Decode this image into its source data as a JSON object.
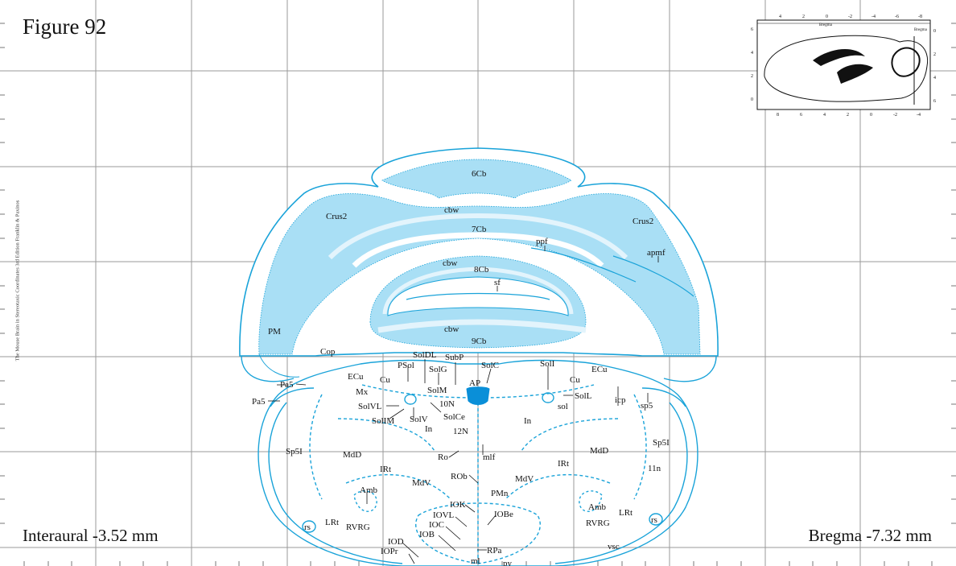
{
  "figure": {
    "title": "Figure 92",
    "side_credit": "The Mouse Brain in Stereotaxic Coordinates 3rd Edition  Franklin & Paxinos",
    "interaural": "Interaural -3.52 mm",
    "bregma": "Bregma -7.32 mm"
  },
  "colors": {
    "outline": "#1aa3d9",
    "fill_light": "#a9dff5",
    "fill_white_matter": "#e3f4fc",
    "area_postrema": "#0a8fd8",
    "grid": "#9a9a9a"
  },
  "inset": {
    "top_ticks": [
      "4",
      "2",
      "0",
      "-2",
      "-4",
      "-6",
      "-8"
    ],
    "bottom_ticks": [
      "8",
      "6",
      "4",
      "2",
      "0",
      "-2",
      "-4"
    ],
    "left_ticks": [
      "6",
      "4",
      "2",
      "0"
    ],
    "right_ticks": [
      "0",
      "2",
      "4",
      "6"
    ],
    "label_left": "Bregma",
    "label_right": "Bregma"
  },
  "labels": {
    "c6Cb": "6Cb",
    "crus2_l": "Crus2",
    "crus2_r": "Crus2",
    "cbw1": "cbw",
    "c7Cb": "7Cb",
    "ppf": "ppf",
    "apmf": "apmf",
    "cbw2": "cbw",
    "c8Cb": "8Cb",
    "sf": "sf",
    "pm": "PM",
    "cbw3": "cbw",
    "c9Cb": "9Cb",
    "cop": "Cop",
    "soldl": "SolDL",
    "subp": "SubP",
    "psol": "PSol",
    "solg": "SolG",
    "solc": "SolC",
    "soli": "SolI",
    "ap": "AP",
    "ecu_l": "ECu",
    "ecu_r": "ECu",
    "cu_l": "Cu",
    "cu_r": "Cu",
    "pa5_1": "Pa5",
    "pa5_2": "Pa5",
    "mx": "Mx",
    "solm": "SolM",
    "n10": "10N",
    "solvl": "SolVL",
    "soll": "SolL",
    "icp": "icp",
    "sp5": "sp5",
    "sol": "sol",
    "solim": "SolIM",
    "solv": "SolV",
    "solce": "SolCe",
    "in_l": "In",
    "in_r": "In",
    "n12": "12N",
    "sp5i_l": "Sp5I",
    "sp5i_r": "Sp5I",
    "mdd_l": "MdD",
    "mdd_r": "MdD",
    "ro": "Ro",
    "mlf": "mlf",
    "irt_l": "IRt",
    "irt_r": "IRt",
    "n11": "11n",
    "rob": "ROb",
    "mdv_l": "MdV",
    "mdv_r": "MdV",
    "pmn": "PMn",
    "amb_l": "Amb",
    "amb_r": "Amb",
    "lrt_l": "LRt",
    "lrt_r": "LRt",
    "iok": "IOK",
    "iovl": "IOVL",
    "iobe": "IOBe",
    "ioc": "IOC",
    "rs_l": "rs",
    "rs_r": "rs",
    "rvrg_l": "RVRG",
    "rvrg_r": "RVRG",
    "iob": "IOB",
    "iod": "IOD",
    "iopr": "IOPr",
    "rpa": "RPa",
    "vsc": "vsc",
    "ml": "ml",
    "py": "py"
  }
}
